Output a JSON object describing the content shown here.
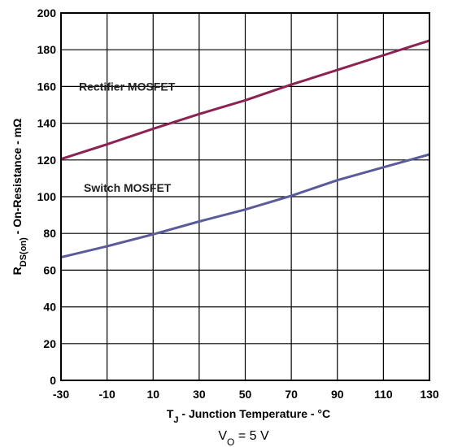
{
  "chart_data": {
    "type": "line",
    "xlabel": {
      "main": "T",
      "sub": "J",
      "rest": " - Junction Temperature - °C"
    },
    "ylabel": {
      "main": "R",
      "sub": "DS(on)",
      "rest": " - On-Resistance - mΩ"
    },
    "xlim": [
      -30,
      130
    ],
    "ylim": [
      0,
      200
    ],
    "xticks": [
      "-30",
      "-10",
      "10",
      "30",
      "50",
      "70",
      "90",
      "110",
      "130"
    ],
    "yticks": [
      "0",
      "20",
      "40",
      "60",
      "80",
      "100",
      "120",
      "140",
      "160",
      "180",
      "200"
    ],
    "grid": true,
    "series": [
      {
        "name": "Rectifier MOSFET",
        "color": "#8B2252",
        "x": [
          -30,
          -10,
          10,
          30,
          50,
          70,
          90,
          110,
          130
        ],
        "y": [
          120.5,
          128.5,
          137,
          145,
          152.5,
          161,
          169,
          177,
          185
        ]
      },
      {
        "name": "Switch MOSFET",
        "color": "#5B5B9B",
        "x": [
          -30,
          -10,
          10,
          30,
          50,
          70,
          90,
          110,
          130
        ],
        "y": [
          67,
          73,
          79.5,
          86.5,
          93,
          100.5,
          109,
          116,
          123
        ]
      }
    ]
  },
  "caption": {
    "main": "V",
    "sub": "O",
    "rest": " = 5 V"
  }
}
